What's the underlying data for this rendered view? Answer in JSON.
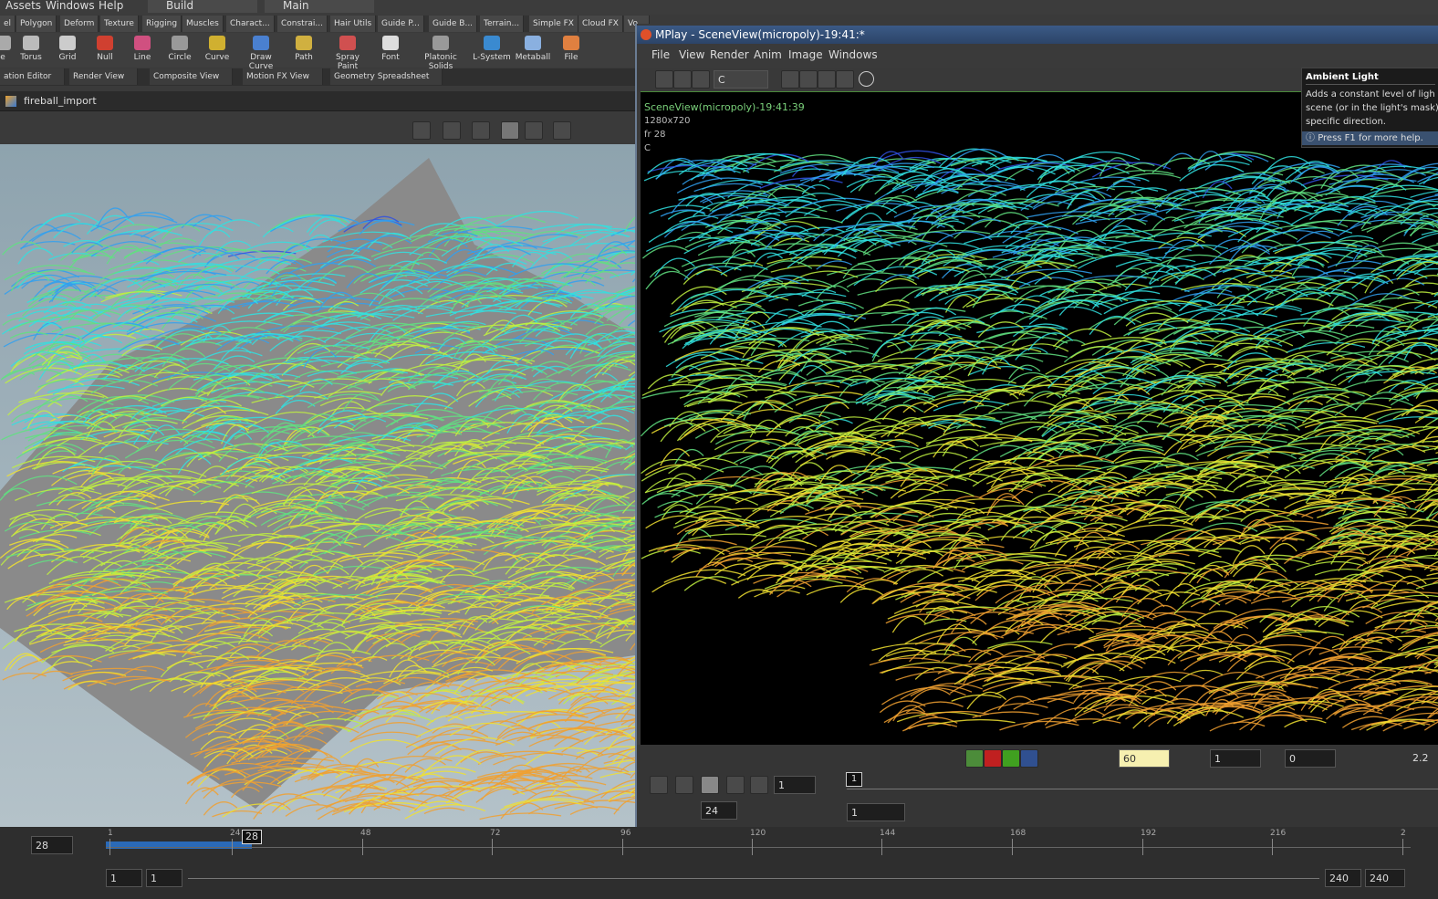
{
  "menu": [
    "Assets",
    "Windows",
    "Help"
  ],
  "desktop": "Build",
  "context": "Main",
  "shelf_tabs": [
    "el",
    "Polygon",
    "Deform",
    "Texture",
    "Rigging",
    "Muscles",
    "Charact...",
    "Constrai...",
    "Hair Utils",
    "Guide P...",
    "Guide B...",
    "Terrain...",
    "Simple FX",
    "Cloud FX",
    "Vo..."
  ],
  "shelf_tools": [
    "e",
    "Torus",
    "Grid",
    "Null",
    "Line",
    "Circle",
    "Curve",
    "Draw Curve",
    "Path",
    "Spray Paint",
    "Font",
    "Platonic Solids",
    "L-System",
    "Metaball",
    "File"
  ],
  "pane_tabs": [
    "ation Editor",
    "Render View",
    "Composite View",
    "Motion FX View",
    "Geometry Spreadsheet"
  ],
  "network_path": "fireball_import",
  "mplay": {
    "title": "MPlay - SceneView(micropoly)-19:41:*",
    "menu": [
      "File",
      "View",
      "Render",
      "Anim",
      "Image",
      "Windows"
    ],
    "plane": "C",
    "info": [
      "SceneView(micropoly)-19:41:39",
      "1280x720",
      "fr 28",
      "C"
    ],
    "help": {
      "title": "Ambient Light",
      "lines": [
        "Adds a constant level of ligh",
        "scene (or in the light's mask)",
        "specific direction."
      ],
      "hint": "Press F1 for more help."
    },
    "controls": {
      "gamma": "60",
      "gain": "1",
      "offset": "0",
      "exposure": "2.2",
      "frame": "1",
      "marker": "1",
      "fps": "24",
      "range_start": "1"
    }
  },
  "timeline": {
    "frame": "28",
    "marker": "28",
    "ruler": [
      "1",
      "24",
      "48",
      "72",
      "96",
      "120",
      "144",
      "168",
      "192",
      "216",
      "2"
    ],
    "start": "1",
    "start2": "1",
    "end": "240",
    "end2": "240"
  }
}
